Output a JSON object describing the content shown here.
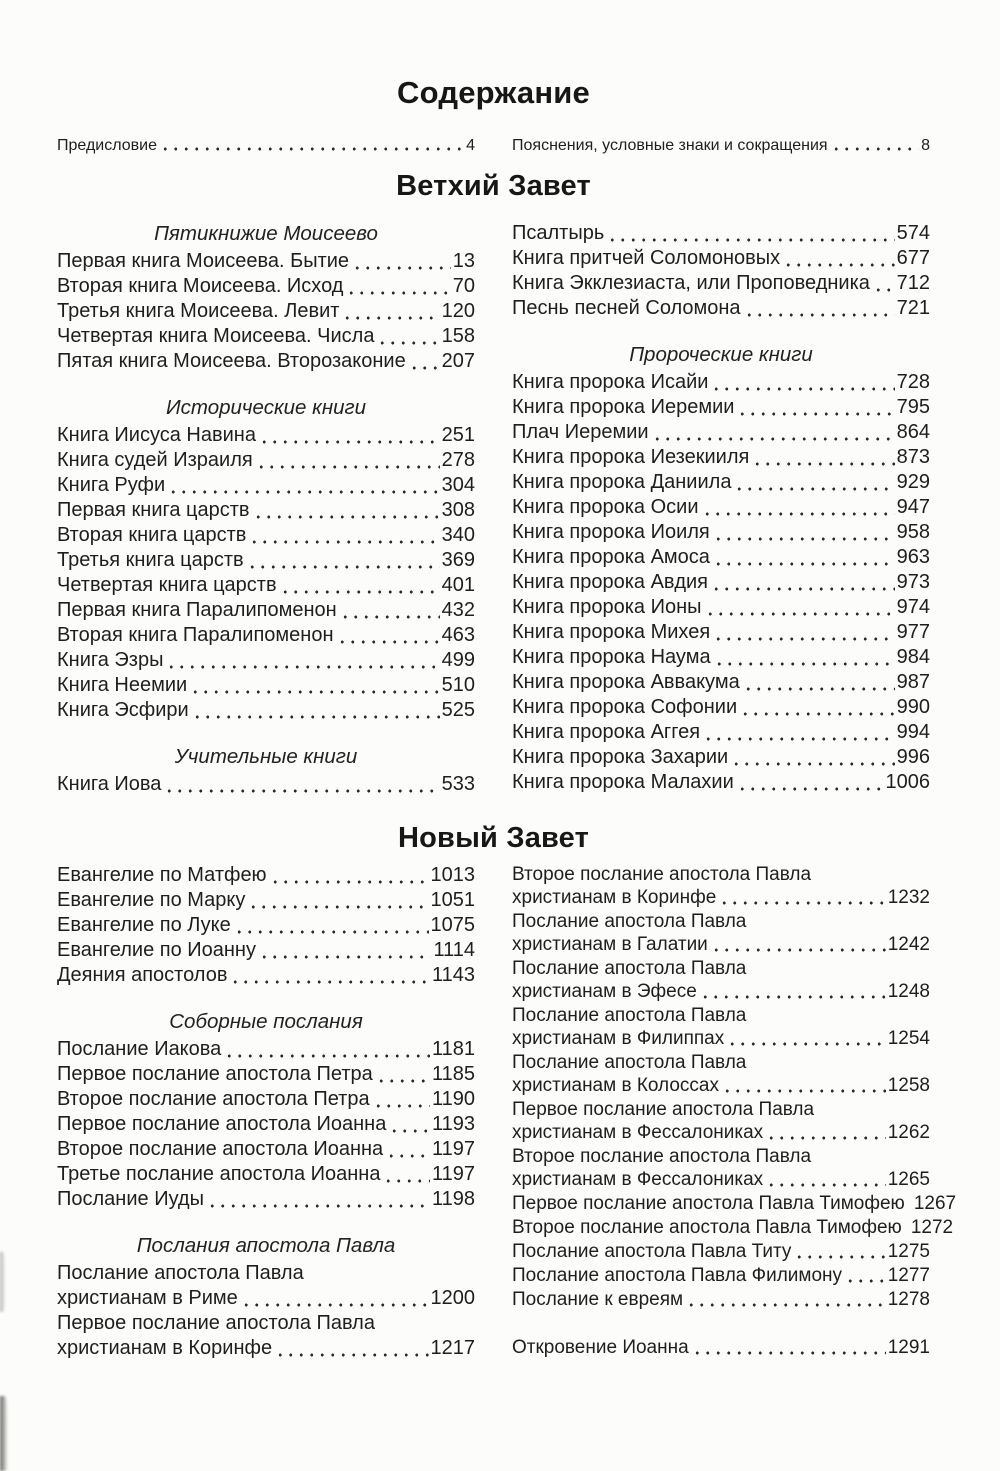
{
  "title": "Содержание",
  "colors": {
    "paper": "#fcfcfb",
    "ink": "#1e1e1e",
    "dot": "#2b2b2b"
  },
  "front_matter": [
    {
      "t": "Предисловие",
      "p": "4"
    },
    {
      "t": "Пояснения, условные знаки и сокращения",
      "p": "8"
    }
  ],
  "sections": [
    {
      "heading": "Ветхий Завет",
      "columns": [
        {
          "tight": false,
          "groups": [
            {
              "subheading": "Пятикнижие Моисеево",
              "entries": [
                {
                  "t": "Первая книга Моисеева. Бытие",
                  "p": "13"
                },
                {
                  "t": "Вторая книга Моисеева. Исход",
                  "p": "70"
                },
                {
                  "t": "Третья книга Моисеева. Левит",
                  "p": "120"
                },
                {
                  "t": "Четвертая книга Моисеева. Числа",
                  "p": "158"
                },
                {
                  "t": "Пятая книга Моисеева. Второзаконие",
                  "p": "207"
                }
              ]
            },
            {
              "subheading": "Исторические книги",
              "entries": [
                {
                  "t": "Книга Иисуса Навина",
                  "p": "251"
                },
                {
                  "t": "Книга судей Израиля",
                  "p": "278"
                },
                {
                  "t": "Книга Руфи",
                  "p": "304"
                },
                {
                  "t": "Первая книга царств",
                  "p": "308"
                },
                {
                  "t": "Вторая книга царств",
                  "p": "340"
                },
                {
                  "t": "Третья книга царств",
                  "p": "369"
                },
                {
                  "t": "Четвертая книга царств",
                  "p": "401"
                },
                {
                  "t": "Первая книга Паралипоменон",
                  "p": "432"
                },
                {
                  "t": "Вторая книга Паралипоменон",
                  "p": "463"
                },
                {
                  "t": "Книга Эзры",
                  "p": "499"
                },
                {
                  "t": "Книга Неемии",
                  "p": "510"
                },
                {
                  "t": "Книга Эсфири",
                  "p": "525"
                }
              ]
            },
            {
              "subheading": "Учительные книги",
              "entries": [
                {
                  "t": "Книга Иова",
                  "p": "533"
                }
              ]
            }
          ]
        },
        {
          "tight": false,
          "groups": [
            {
              "subheading": "",
              "entries": [
                {
                  "t": "Псалтырь",
                  "p": "574"
                },
                {
                  "t": "Книга притчей Соломоновых",
                  "p": "677"
                },
                {
                  "t": "Книга Экклезиаста, или Проповедника",
                  "p": "712"
                },
                {
                  "t": "Песнь песней Соломона",
                  "p": "721"
                }
              ]
            },
            {
              "subheading": "Пророческие книги",
              "entries": [
                {
                  "t": "Книга пророка Исайи",
                  "p": "728"
                },
                {
                  "t": "Книга пророка Иеремии",
                  "p": "795"
                },
                {
                  "t": "Плач Иеремии",
                  "p": "864"
                },
                {
                  "t": "Книга пророка Иезекииля",
                  "p": "873"
                },
                {
                  "t": "Книга пророка Даниила",
                  "p": "929"
                },
                {
                  "t": "Книга пророка Осии",
                  "p": "947"
                },
                {
                  "t": "Книга пророка Иоиля",
                  "p": "958"
                },
                {
                  "t": "Книга пророка Амоса",
                  "p": "963"
                },
                {
                  "t": "Книга пророка Авдия",
                  "p": "973"
                },
                {
                  "t": "Книга пророка Ионы",
                  "p": "974"
                },
                {
                  "t": "Книга пророка Михея",
                  "p": "977"
                },
                {
                  "t": "Книга пророка Наума",
                  "p": "984"
                },
                {
                  "t": "Книга пророка Аввакума",
                  "p": "987"
                },
                {
                  "t": "Книга пророка Софонии",
                  "p": "990"
                },
                {
                  "t": "Книга пророка Аггея",
                  "p": "994"
                },
                {
                  "t": "Книга пророка Захарии",
                  "p": "996"
                },
                {
                  "t": "Книга пророка Малахии",
                  "p": "1006"
                }
              ]
            }
          ]
        }
      ]
    },
    {
      "heading": "Новый Завет",
      "columns": [
        {
          "tight": false,
          "groups": [
            {
              "subheading": "",
              "entries": [
                {
                  "t": "Евангелие по Матфею",
                  "p": "1013"
                },
                {
                  "t": "Евангелие по Марку",
                  "p": "1051"
                },
                {
                  "t": "Евангелие по Луке",
                  "p": "1075"
                },
                {
                  "t": "Евангелие по Иоанну",
                  "p": "1114"
                },
                {
                  "t": "Деяния апостолов",
                  "p": "1143"
                }
              ]
            },
            {
              "subheading": "Соборные послания",
              "entries": [
                {
                  "t": "Послание Иакова",
                  "p": "1181"
                },
                {
                  "t": "Первое послание апостола Петра",
                  "p": "1185"
                },
                {
                  "t": "Второе послание апостола Петра",
                  "p": "1190"
                },
                {
                  "t": "Первое послание апостола Иоанна",
                  "p": "1193"
                },
                {
                  "t": "Второе послание апостола Иоанна",
                  "p": "1197"
                },
                {
                  "t": "Третье послание апостола Иоанна",
                  "p": "1197"
                },
                {
                  "t": "Послание Иуды",
                  "p": "1198"
                }
              ]
            },
            {
              "subheading": "Послания апостола Павла",
              "entries": [
                {
                  "pre": "Послание апостола Павла",
                  "t": "христианам в Риме",
                  "p": "1200"
                },
                {
                  "pre": "Первое послание апостола Павла",
                  "t": "христианам в Коринфе",
                  "p": "1217"
                }
              ]
            }
          ]
        },
        {
          "tight": true,
          "groups": [
            {
              "subheading": "",
              "entries": [
                {
                  "pre": "Второе послание апостола Павла",
                  "t": "христианам в Коринфе",
                  "p": "1232"
                },
                {
                  "pre": "Послание апостола Павла",
                  "t": "христианам в Галатии",
                  "p": "1242"
                },
                {
                  "pre": "Послание апостола Павла",
                  "t": "христианам в Эфесе",
                  "p": "1248"
                },
                {
                  "pre": "Послание апостола Павла",
                  "t": "христианам в Филиппах",
                  "p": "1254"
                },
                {
                  "pre": "Послание апостола Павла",
                  "t": "христианам в Колоссах",
                  "p": "1258"
                },
                {
                  "pre": "Первое послание апостола Павла",
                  "t": "христианам в Фессалониках",
                  "p": "1262"
                },
                {
                  "pre": "Второе послание апостола Павла",
                  "t": "христианам в Фессалониках",
                  "p": "1265"
                },
                {
                  "t": "Первое послание апостола Павла Тимофею",
                  "p": "1267",
                  "nd": true
                },
                {
                  "t": "Второе послание апостола Павла Тимофею",
                  "p": "1272",
                  "nd": true
                },
                {
                  "t": "Послание апостола Павла Титу",
                  "p": "1275"
                },
                {
                  "t": "Послание апостола Павла Филимону",
                  "p": "1277"
                },
                {
                  "t": "Послание к евреям",
                  "p": "1278"
                }
              ]
            },
            {
              "subheading": "",
              "gap": true,
              "entries": [
                {
                  "t": "Откровение Иоанна",
                  "p": "1291"
                }
              ]
            }
          ]
        }
      ]
    }
  ]
}
